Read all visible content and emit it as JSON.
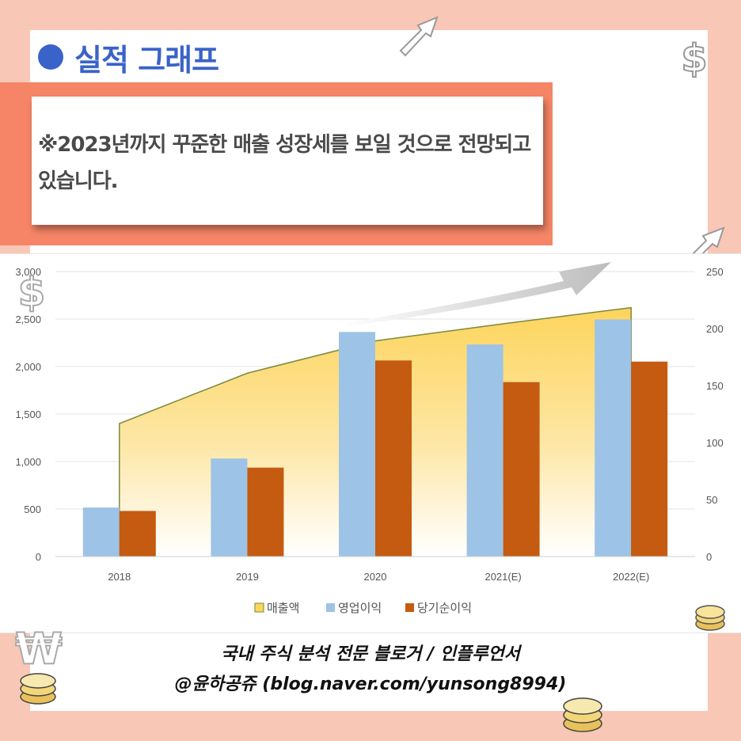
{
  "header": {
    "title": "실적 그래프"
  },
  "note": {
    "text": "※2023년까지 꾸준한 매출 성장세를 보일 것으로 전망되고 있습니다."
  },
  "footer": {
    "line1": "국내 주식 분석 전문 블로거 / 인플루언서",
    "line2": "@윤하공쥬 (blog.naver.com/yunsong8994)"
  },
  "colors": {
    "background": "#f9c7b6",
    "accent_band": "#f58566",
    "title_blue": "#3a63c9",
    "revenue_fill_top": "#fdd45c",
    "revenue_line": "#7a8a3c",
    "operating_profit": "#9dc3e6",
    "net_income": "#c55a11"
  },
  "chart_data": {
    "type": "bar",
    "categories": [
      "2018",
      "2019",
      "2020",
      "2021(E)",
      "2022(E)"
    ],
    "series": [
      {
        "name": "매출액",
        "type": "area",
        "axis": "left",
        "values": [
          1400,
          1930,
          2270,
          2450,
          2620
        ]
      },
      {
        "name": "영업이익",
        "type": "bar",
        "axis": "right",
        "values": [
          43,
          86,
          197,
          186,
          208
        ]
      },
      {
        "name": "당기순이익",
        "type": "bar",
        "axis": "right",
        "values": [
          40,
          78,
          172,
          153,
          171
        ]
      }
    ],
    "y_left": {
      "min": 0,
      "max": 3000,
      "ticks": [
        0,
        500,
        1000,
        1500,
        2000,
        2500,
        3000
      ],
      "tick_labels": [
        "0",
        "500",
        "1,000",
        "1,500",
        "2,000",
        "2,500",
        "3,000"
      ]
    },
    "y_right": {
      "min": 0,
      "max": 250,
      "ticks": [
        0,
        50,
        100,
        150,
        200,
        250
      ],
      "tick_labels": [
        "0",
        "50",
        "100",
        "150",
        "200",
        "250"
      ]
    },
    "grid": true,
    "legend": "bottom-center"
  }
}
